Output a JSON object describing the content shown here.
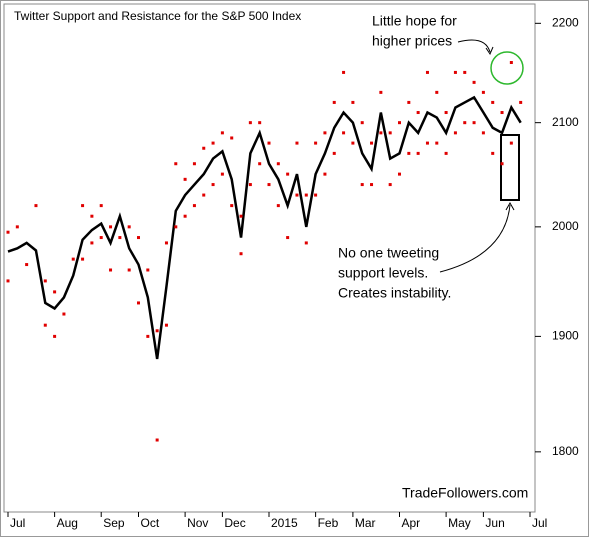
{
  "chart_data": {
    "type": "line",
    "title": "Twitter Support and Resistance for the S&P 500 Index",
    "annotations": [
      {
        "lines": [
          "Little hope for",
          "higher prices"
        ]
      },
      {
        "lines": [
          "No one tweeting",
          "support levels.",
          "Creates instability."
        ]
      }
    ],
    "watermark": "TradeFollowers.com",
    "categories": [
      "Jul",
      null,
      null,
      null,
      null,
      "Aug",
      null,
      null,
      null,
      null,
      "Sep",
      null,
      null,
      null,
      "Oct",
      null,
      null,
      null,
      null,
      "Nov",
      null,
      null,
      null,
      "Dec",
      null,
      null,
      null,
      null,
      "2015",
      null,
      null,
      null,
      null,
      "Feb",
      null,
      null,
      null,
      "Mar",
      null,
      null,
      null,
      null,
      "Apr",
      null,
      null,
      null,
      null,
      "May",
      null,
      null,
      null,
      "Jun",
      null,
      null,
      null,
      null,
      "Jul"
    ],
    "series": [
      {
        "color": "#000000",
        "style": "line",
        "values": [
          1977,
          1980,
          1985,
          1978,
          1930,
          1925,
          1935,
          1955,
          1988,
          1997,
          2003,
          1985,
          2010,
          1980,
          1965,
          1935,
          1880,
          1945,
          2015,
          2030,
          2040,
          2050,
          2065,
          2072,
          2045,
          1990,
          2070,
          2090,
          2060,
          2045,
          2020,
          2050,
          2000,
          2050,
          2070,
          2095,
          2110,
          2100,
          2070,
          2055,
          2110,
          2065,
          2070,
          2100,
          2090,
          2110,
          2105,
          2090,
          2115,
          2120,
          2125,
          2110,
          2095,
          2090,
          2115,
          2100,
          null
        ]
      },
      {
        "color": "#e00000",
        "style": "dots",
        "values": [
          1995,
          2000,
          null,
          2020,
          1950,
          1940,
          null,
          1970,
          2020,
          2010,
          2020,
          2000,
          null,
          2000,
          1990,
          1960,
          1905,
          1985,
          2060,
          2045,
          2060,
          2075,
          2080,
          2090,
          2085,
          2010,
          2100,
          2100,
          2080,
          2060,
          2050,
          2080,
          2030,
          2080,
          2090,
          2120,
          2150,
          2120,
          2100,
          2080,
          2130,
          2090,
          2100,
          2120,
          2110,
          2150,
          2130,
          2110,
          2150,
          2150,
          2140,
          2130,
          2120,
          2110,
          2160,
          2120,
          null
        ]
      },
      {
        "color": "#e00000",
        "style": "dots",
        "values": [
          1950,
          null,
          1965,
          null,
          1910,
          1900,
          1920,
          null,
          1970,
          1985,
          1990,
          1960,
          1990,
          1960,
          1930,
          1900,
          1810,
          1910,
          2000,
          2010,
          2020,
          2030,
          2040,
          2050,
          2020,
          1975,
          2040,
          2060,
          2040,
          2020,
          1990,
          2030,
          1985,
          2030,
          2050,
          2070,
          2090,
          2080,
          2040,
          2040,
          2090,
          2040,
          2050,
          2070,
          2070,
          2080,
          2080,
          2070,
          2090,
          2100,
          2100,
          2090,
          2070,
          2060,
          2080,
          null,
          null
        ]
      }
    ],
    "log_scale": true,
    "ylim": [
      1750,
      2220
    ],
    "yticks": [
      1800,
      1900,
      2000,
      2100,
      2200
    ]
  }
}
